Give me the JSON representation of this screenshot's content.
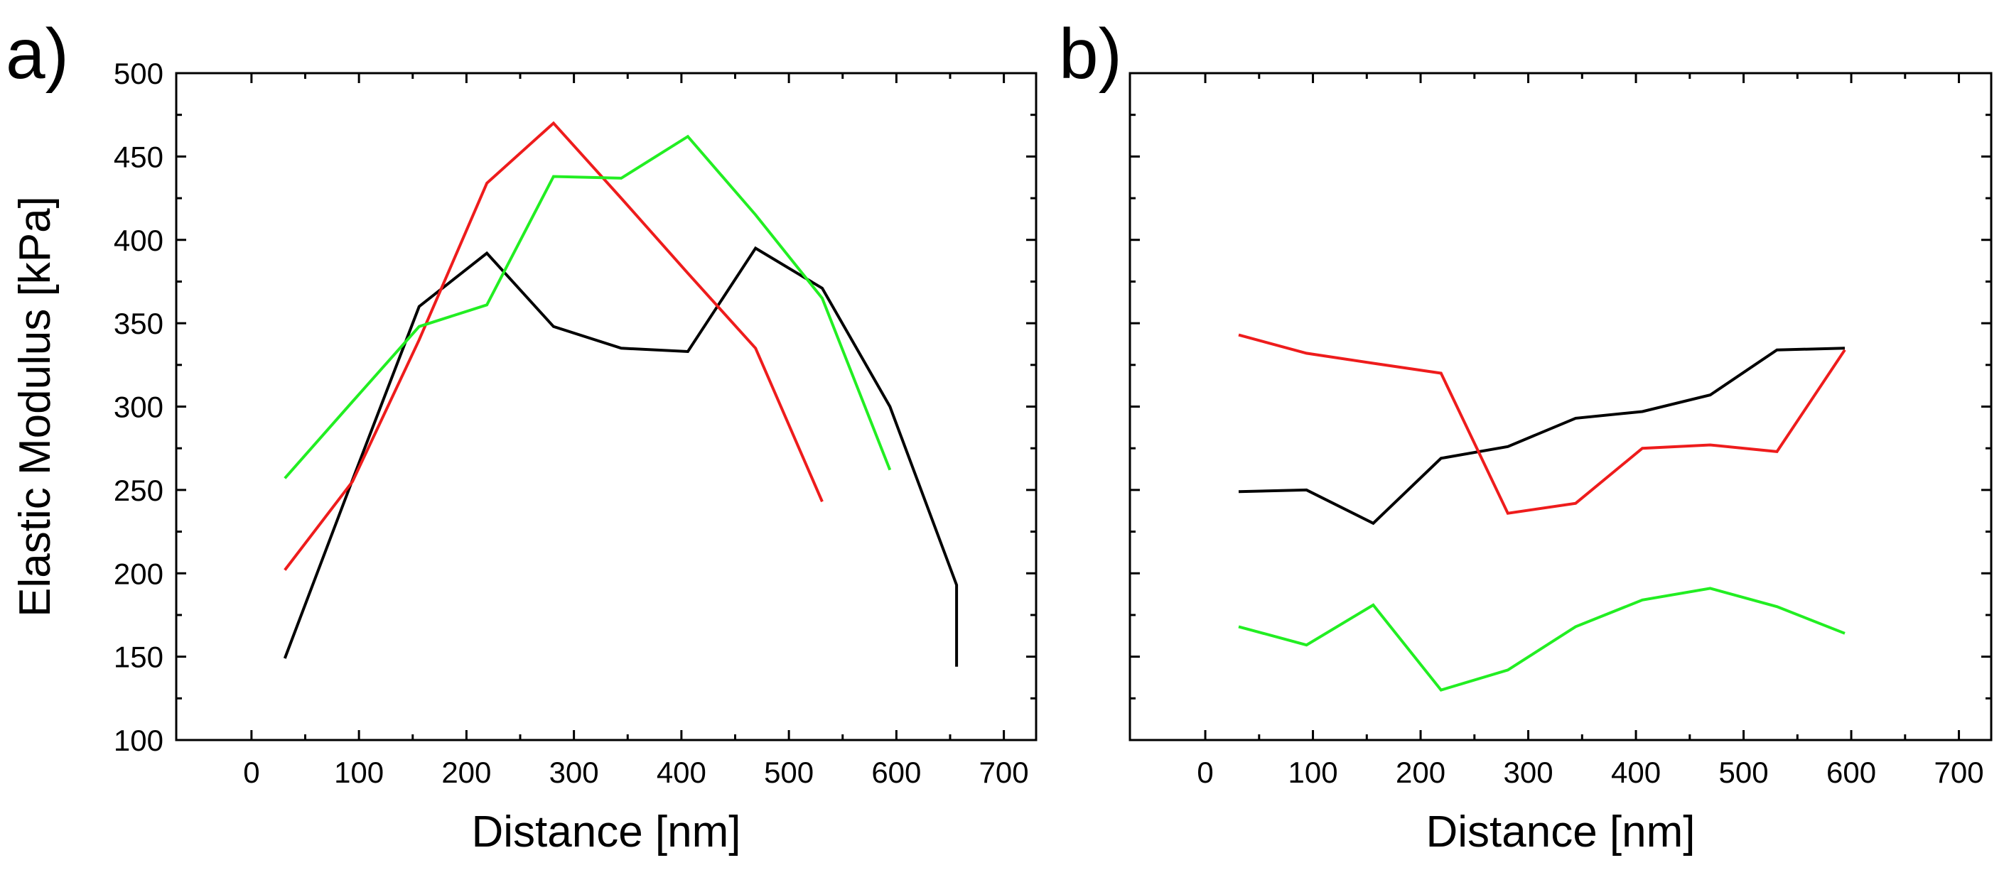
{
  "chart_data": [
    {
      "type": "line",
      "panel_label": "a)",
      "title": "",
      "xlabel": "Distance [nm]",
      "ylabel": "Elastic Modulus [kPa]",
      "xlim": [
        -70,
        730
      ],
      "ylim": [
        100,
        500
      ],
      "xticks": [
        0,
        100,
        200,
        300,
        400,
        500,
        600,
        700
      ],
      "xtick_labels": [
        "0",
        "100",
        "200",
        "300",
        "400",
        "500",
        "600",
        "700"
      ],
      "yticks": [
        100,
        150,
        200,
        250,
        300,
        350,
        400,
        450,
        500
      ],
      "ytick_labels": [
        "100",
        "150",
        "200",
        "250",
        "300",
        "350",
        "400",
        "450",
        "500"
      ],
      "grid": false,
      "series": [
        {
          "name": "black",
          "color": "#000000",
          "x": [
            31,
            94,
            156,
            219,
            281,
            344,
            406,
            469,
            531,
            594,
            656,
            656
          ],
          "y": [
            149,
            256,
            360,
            392,
            348,
            335,
            333,
            395,
            371,
            300,
            193,
            144
          ]
        },
        {
          "name": "red",
          "color": "#ee1c1c",
          "x": [
            31,
            94,
            156,
            219,
            281,
            344,
            406,
            469,
            531
          ],
          "y": [
            202,
            255,
            340,
            434,
            470,
            425,
            380,
            335,
            243
          ]
        },
        {
          "name": "green",
          "color": "#22ee22",
          "x": [
            31,
            94,
            156,
            219,
            281,
            344,
            406,
            469,
            531,
            594
          ],
          "y": [
            257,
            303,
            348,
            361,
            438,
            437,
            462,
            415,
            365,
            262
          ]
        }
      ]
    },
    {
      "type": "line",
      "panel_label": "b)",
      "title": "",
      "xlabel": "Distance [nm]",
      "ylabel": "",
      "xlim": [
        -70,
        730
      ],
      "ylim": [
        100,
        500
      ],
      "xticks": [
        0,
        100,
        200,
        300,
        400,
        500,
        600,
        700
      ],
      "xtick_labels": [
        "0",
        "100",
        "200",
        "300",
        "400",
        "500",
        "600",
        "700"
      ],
      "yticks": [
        100,
        150,
        200,
        250,
        300,
        350,
        400,
        450,
        500
      ],
      "ytick_labels": [],
      "grid": false,
      "series": [
        {
          "name": "black",
          "color": "#000000",
          "x": [
            31,
            94,
            156,
            219,
            281,
            344,
            406,
            469,
            531,
            594
          ],
          "y": [
            249,
            250,
            230,
            269,
            276,
            293,
            297,
            307,
            334,
            335
          ]
        },
        {
          "name": "red",
          "color": "#ee1c1c",
          "x": [
            31,
            94,
            156,
            219,
            281,
            344,
            406,
            469,
            531,
            594
          ],
          "y": [
            343,
            332,
            326,
            320,
            236,
            242,
            275,
            277,
            273,
            334
          ]
        },
        {
          "name": "green",
          "color": "#22ee22",
          "x": [
            31,
            94,
            156,
            219,
            281,
            344,
            406,
            469,
            531,
            594
          ],
          "y": [
            168,
            157,
            181,
            130,
            142,
            168,
            184,
            191,
            180,
            164
          ]
        }
      ]
    }
  ]
}
